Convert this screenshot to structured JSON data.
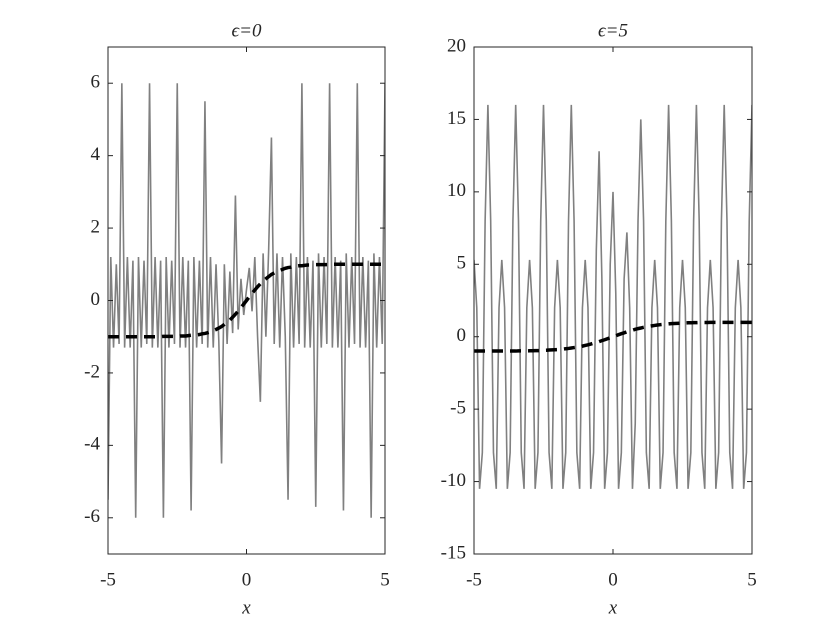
{
  "chart_data": [
    {
      "type": "line",
      "title": "ϵ=0",
      "xlabel": "x",
      "x": [
        -5,
        -4.9,
        -4.8,
        -4.7,
        -4.6,
        -4.5,
        -4.4,
        -4.3,
        -4.2,
        -4.1,
        -4,
        -3.9,
        -3.8,
        -3.7,
        -3.6,
        -3.5,
        -3.4,
        -3.3,
        -3.2,
        -3.1,
        -3,
        -2.9,
        -2.8,
        -2.7,
        -2.6,
        -2.5,
        -2.4,
        -2.3,
        -2.2,
        -2.1,
        -2,
        -1.9,
        -1.8,
        -1.7,
        -1.6,
        -1.5,
        -1.4,
        -1.3,
        -1.2,
        -1.1,
        -1,
        -0.9,
        -0.8,
        -0.7,
        -0.6,
        -0.5,
        -0.4,
        -0.3,
        -0.2,
        -0.1,
        0,
        0.1,
        0.2,
        0.3,
        0.4,
        0.5,
        0.6,
        0.7,
        0.8,
        0.9,
        1,
        1.1,
        1.2,
        1.3,
        1.4,
        1.5,
        1.6,
        1.7,
        1.8,
        1.9,
        2,
        2.1,
        2.2,
        2.3,
        2.4,
        2.5,
        2.6,
        2.7,
        2.8,
        2.9,
        3,
        3.1,
        3.2,
        3.3,
        3.4,
        3.5,
        3.6,
        3.7,
        3.8,
        3.9,
        4,
        4.1,
        4.2,
        4.3,
        4.4,
        4.5,
        4.6,
        4.7,
        4.8,
        4.9,
        5
      ],
      "series": [
        {
          "color": "#808080",
          "dashed": false,
          "values": [
            -5.5,
            1.2,
            -1.3,
            1.0,
            -1.2,
            6,
            -1.3,
            1.2,
            -1.3,
            1.1,
            -6,
            1.2,
            -1.3,
            1.1,
            -1.2,
            6,
            -1.3,
            1.2,
            -1.3,
            1.1,
            -6,
            1.2,
            -1.3,
            1.1,
            -1.2,
            6,
            -1.3,
            1.2,
            -1.3,
            1.1,
            -5.8,
            1.2,
            -1.3,
            1.1,
            -1.2,
            5.5,
            -1.3,
            1.2,
            -1.3,
            1.0,
            -1.1,
            -4.5,
            1.0,
            -1.2,
            0.8,
            -0.9,
            2.9,
            -0.8,
            0.6,
            -0.4,
            0.3,
            0.9,
            -0.3,
            1.2,
            -1.0,
            -2.8,
            1.3,
            -1.0,
            1.4,
            4.5,
            -1.2,
            1.3,
            -1.3,
            1.2,
            -1.0,
            -5.5,
            1.3,
            -1.3,
            1.2,
            -1.2,
            6,
            -1.3,
            1.2,
            -1.3,
            1.1,
            -5.7,
            1.3,
            -1.3,
            1.2,
            -1.2,
            6,
            -1.3,
            1.2,
            -1.3,
            1.1,
            -5.8,
            1.3,
            -1.3,
            1.2,
            -1.2,
            6,
            -1.3,
            1.2,
            -1.3,
            1.1,
            -6,
            1.3,
            -1.3,
            1.2,
            -1.2,
            6
          ]
        },
        {
          "color": "#000000",
          "dashed": true,
          "values": [
            -1,
            -1,
            -1,
            -1,
            -1,
            -1,
            -1,
            -1,
            -1,
            -1,
            -1,
            -1,
            -1,
            -1,
            -1,
            -1,
            -1,
            -1,
            -1,
            -1,
            -0.99,
            -0.99,
            -0.99,
            -0.99,
            -0.99,
            -0.99,
            -0.98,
            -0.98,
            -0.98,
            -0.97,
            -0.96,
            -0.96,
            -0.95,
            -0.94,
            -0.92,
            -0.91,
            -0.89,
            -0.86,
            -0.83,
            -0.8,
            -0.76,
            -0.72,
            -0.66,
            -0.6,
            -0.54,
            -0.46,
            -0.38,
            -0.29,
            -0.2,
            -0.1,
            0,
            0.1,
            0.2,
            0.29,
            0.38,
            0.46,
            0.54,
            0.6,
            0.66,
            0.72,
            0.76,
            0.8,
            0.83,
            0.86,
            0.89,
            0.91,
            0.92,
            0.94,
            0.95,
            0.96,
            0.96,
            0.97,
            0.98,
            0.98,
            0.98,
            0.99,
            0.99,
            0.99,
            0.99,
            0.99,
            0.99,
            1,
            1,
            1,
            1,
            1,
            1,
            1,
            1,
            1,
            1,
            1,
            1,
            1,
            1,
            1,
            1,
            1,
            1,
            1,
            1
          ]
        }
      ],
      "xlim": [
        -5,
        5
      ],
      "xticks": [
        -5,
        0,
        5
      ],
      "ylim": [
        -7,
        7
      ],
      "yticks": [
        -6,
        -4,
        -2,
        0,
        2,
        4,
        6
      ]
    },
    {
      "type": "line",
      "title": "ϵ=5",
      "xlabel": "x",
      "x": [
        -5,
        -4.9,
        -4.8,
        -4.7,
        -4.6,
        -4.5,
        -4.4,
        -4.3,
        -4.2,
        -4.1,
        -4,
        -3.9,
        -3.8,
        -3.7,
        -3.6,
        -3.5,
        -3.4,
        -3.3,
        -3.2,
        -3.1,
        -3,
        -2.9,
        -2.8,
        -2.7,
        -2.6,
        -2.5,
        -2.4,
        -2.3,
        -2.2,
        -2.1,
        -2,
        -1.9,
        -1.8,
        -1.7,
        -1.6,
        -1.5,
        -1.4,
        -1.3,
        -1.2,
        -1.1,
        -1,
        -0.9,
        -0.8,
        -0.7,
        -0.6,
        -0.5,
        -0.4,
        -0.3,
        -0.2,
        -0.1,
        0,
        0.1,
        0.2,
        0.3,
        0.4,
        0.5,
        0.6,
        0.7,
        0.8,
        0.9,
        1,
        1.1,
        1.2,
        1.3,
        1.4,
        1.5,
        1.6,
        1.7,
        1.8,
        1.9,
        2,
        2.1,
        2.2,
        2.3,
        2.4,
        2.5,
        2.6,
        2.7,
        2.8,
        2.9,
        3,
        3.1,
        3.2,
        3.3,
        3.4,
        3.5,
        3.6,
        3.7,
        3.8,
        3.9,
        4,
        4.1,
        4.2,
        4.3,
        4.4,
        4.5,
        4.6,
        4.7,
        4.8,
        4.9,
        5
      ],
      "series": [
        {
          "color": "#808080",
          "dashed": false,
          "values": [
            5.3,
            2,
            -10.5,
            -8,
            8,
            16,
            8,
            -8,
            -10.5,
            2,
            5.3,
            2,
            -10.5,
            -8,
            8,
            16,
            8,
            -8,
            -10.5,
            2,
            5.3,
            2,
            -10.5,
            -8,
            8,
            16,
            8,
            -8,
            -10.5,
            2,
            5.3,
            2,
            -10.5,
            -8,
            8,
            16,
            8,
            -8,
            -10.5,
            2,
            5.3,
            2,
            -10.5,
            -8,
            6,
            12.8,
            4,
            -10.5,
            -8,
            5,
            10,
            3,
            -10.5,
            -8,
            4,
            7.2,
            2,
            -10.5,
            -6,
            8,
            15,
            8,
            -8,
            -10.5,
            2,
            5.3,
            2,
            -10.5,
            -8,
            8,
            16,
            8,
            -8,
            -10.5,
            2,
            5.3,
            2,
            -10.5,
            -8,
            8,
            16,
            8,
            -8,
            -10.5,
            2,
            5.3,
            2,
            -10.5,
            -8,
            8,
            16,
            8,
            -8,
            -10.5,
            2,
            5.3,
            2,
            -10.5,
            -8,
            8,
            16
          ]
        },
        {
          "color": "#000000",
          "dashed": true,
          "values": [
            -0.99,
            -0.99,
            -0.99,
            -0.99,
            -0.99,
            -0.99,
            -0.99,
            -0.99,
            -0.99,
            -0.99,
            -0.99,
            -0.99,
            -0.99,
            -0.99,
            -0.99,
            -0.99,
            -0.98,
            -0.98,
            -0.98,
            -0.98,
            -0.97,
            -0.97,
            -0.96,
            -0.96,
            -0.95,
            -0.94,
            -0.93,
            -0.92,
            -0.91,
            -0.9,
            -0.89,
            -0.87,
            -0.85,
            -0.83,
            -0.81,
            -0.78,
            -0.75,
            -0.72,
            -0.69,
            -0.65,
            -0.6,
            -0.56,
            -0.51,
            -0.45,
            -0.39,
            -0.34,
            -0.27,
            -0.21,
            -0.14,
            -0.07,
            0,
            0.07,
            0.14,
            0.21,
            0.27,
            0.34,
            0.39,
            0.45,
            0.51,
            0.56,
            0.6,
            0.65,
            0.69,
            0.72,
            0.75,
            0.78,
            0.81,
            0.83,
            0.85,
            0.87,
            0.89,
            0.9,
            0.91,
            0.92,
            0.93,
            0.94,
            0.95,
            0.96,
            0.96,
            0.97,
            0.97,
            0.98,
            0.98,
            0.98,
            0.98,
            0.99,
            0.99,
            0.99,
            0.99,
            0.99,
            0.99,
            0.99,
            0.99,
            0.99,
            0.99,
            0.99,
            0.99,
            0.99,
            0.99,
            0.99,
            0.99
          ]
        }
      ],
      "xlim": [
        -5,
        5
      ],
      "xticks": [
        -5,
        0,
        5
      ],
      "ylim": [
        -15,
        20
      ],
      "yticks": [
        -15,
        -10,
        -5,
        0,
        5,
        10,
        15,
        20
      ]
    }
  ]
}
